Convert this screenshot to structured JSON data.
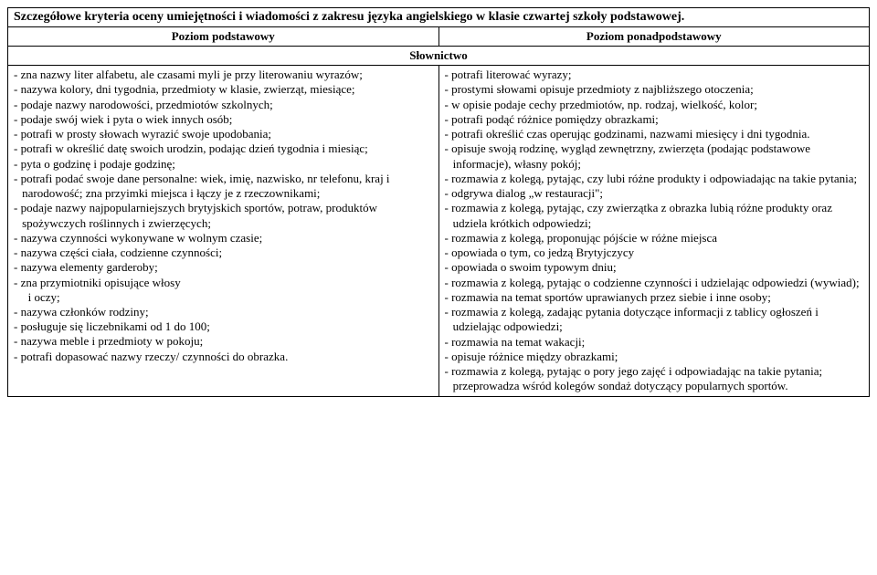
{
  "title": "Szczegółowe kryteria oceny umiejętności i wiadomości z zakresu języka angielskiego w klasie czwartej szkoły podstawowej.",
  "headers": {
    "left": "Poziom podstawowy",
    "right": "Poziom ponadpodstawowy",
    "section": "Słownictwo"
  },
  "left_items": [
    "zna nazwy liter alfabetu, ale czasami myli je przy literowaniu wyrazów;",
    "nazywa kolory, dni tygodnia, przedmioty w klasie, zwierząt, miesiące;",
    "podaje nazwy narodowości, przedmiotów szkolnych;",
    "podaje swój wiek i pyta o wiek innych osób;",
    "potrafi w prosty słowach wyrazić swoje upodobania;",
    "potrafi w określić datę swoich urodzin, podając dzień tygodnia i miesiąc;",
    "pyta o godzinę i podaje godzinę;",
    "potrafi podać swoje dane personalne: wiek, imię, nazwisko, nr telefonu, kraj i narodowość; zna przyimki miejsca i łączy je z rzeczownikami;",
    "podaje nazwy najpopularniejszych brytyjskich sportów, potraw, produktów spożywczych roślinnych i zwierzęcych;",
    "nazywa czynności wykonywane w wolnym czasie;",
    "nazywa części ciała, codzienne czynności;",
    "nazywa elementy garderoby;",
    "zna przymiotniki opisujące włosy",
    "__SUB__i oczy;",
    "nazywa członków rodziny;",
    "posługuje się liczebnikami od 1 do 100;",
    "nazywa meble i przedmioty w pokoju;",
    "potrafi dopasować nazwy rzeczy/ czynności do obrazka."
  ],
  "right_items": [
    "potrafi literować wyrazy;",
    "prostymi słowami opisuje przedmioty z najbliższego otoczenia;",
    "w opisie podaje cechy przedmiotów, np. rodzaj, wielkość, kolor;",
    "potrafi podąć różnice pomiędzy obrazkami;",
    "potrafi określić czas operując godzinami, nazwami miesięcy i dni tygodnia.",
    "opisuje swoją rodzinę, wygląd zewnętrzny, zwierzęta (podając podstawowe informacje), własny pokój;",
    "rozmawia z kolegą, pytając, czy lubi różne produkty i odpowiadając na takie pytania;",
    "odgrywa dialog „w restauracji\";",
    "rozmawia z kolegą, pytając, czy zwierzątka z obrazka lubią różne produkty oraz udziela krótkich odpowiedzi;",
    "rozmawia z kolegą, proponując pójście w różne miejsca",
    "opowiada o tym, co jedzą Brytyjczycy",
    "opowiada o swoim typowym dniu;",
    "rozmawia z kolegą, pytając o codzienne czynności i udzielając odpowiedzi (wywiad);",
    "rozmawia na temat sportów uprawianych przez siebie i inne osoby;",
    "rozmawia z kolegą, zadając pytania dotyczące informacji z tablicy ogłoszeń i udzielając odpowiedzi;",
    "rozmawia na temat wakacji;",
    "opisuje różnice między obrazkami;",
    "rozmawia z kolegą, pytając o pory jego zajęć i odpowiadając na takie pytania; przeprowadza wśród kolegów sondaż dotyczący popularnych sportów."
  ]
}
